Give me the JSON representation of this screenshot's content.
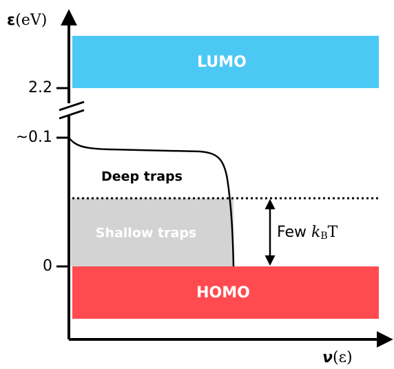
{
  "y_axis": {
    "symbol": "ε",
    "unit": "(eV)"
  },
  "x_axis": {
    "symbol": "ν",
    "argument": "(ε)"
  },
  "ticks": [
    "2.2",
    "~0.1",
    "0"
  ],
  "bands": {
    "lumo": "LUMO",
    "homo": "HOMO"
  },
  "regions": {
    "deep": "Deep traps",
    "shallow": "Shallow traps"
  },
  "annotation": {
    "text": "Few",
    "symbol": "k",
    "subscript": "B",
    "suffix": "T"
  }
}
